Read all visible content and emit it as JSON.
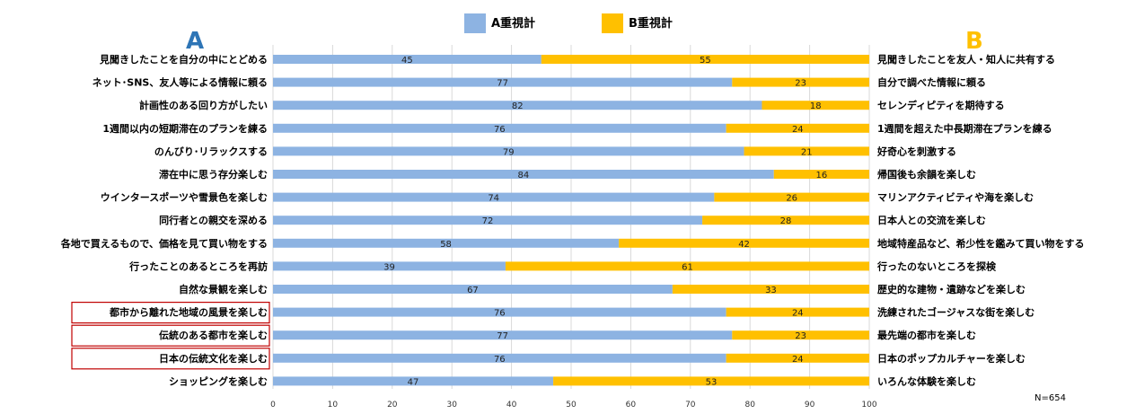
{
  "chart_data": {
    "type": "bar",
    "orientation": "horizontal",
    "stacked": true,
    "xlim": [
      0,
      100
    ],
    "xticks": [
      0,
      10,
      20,
      30,
      40,
      50,
      60,
      70,
      80,
      90,
      100
    ],
    "grid": true,
    "legend_position": "top",
    "left_heading": "A",
    "right_heading": "B",
    "note": "N=654",
    "series": [
      {
        "name": "A重視計",
        "color": "#8db3e2"
      },
      {
        "name": "B重視計",
        "color": "#ffc000"
      }
    ],
    "rows": [
      {
        "a_label": "見聞きしたことを自分の中にとどめる",
        "b_label": "見聞きしたことを友人・知人に共有する",
        "a": 45,
        "b": 55,
        "boxed": false
      },
      {
        "a_label": "ネット･SNS、友人等による情報に頼る",
        "b_label": "自分で調べた情報に頼る",
        "a": 77,
        "b": 23,
        "boxed": false
      },
      {
        "a_label": "計画性のある回り方がしたい",
        "b_label": "セレンディピティを期待する",
        "a": 82,
        "b": 18,
        "boxed": false
      },
      {
        "a_label": "1週間以内の短期滞在のプランを練る",
        "b_label": "1週間を超えた中長期滞在プランを練る",
        "a": 76,
        "b": 24,
        "boxed": false
      },
      {
        "a_label": "のんびり･リラックスする",
        "b_label": "好奇心を刺激する",
        "a": 79,
        "b": 21,
        "boxed": false
      },
      {
        "a_label": "滞在中に思う存分楽しむ",
        "b_label": "帰国後も余韻を楽しむ",
        "a": 84,
        "b": 16,
        "boxed": false
      },
      {
        "a_label": "ウインタースポーツや雪景色を楽しむ",
        "b_label": "マリンアクティビティや海を楽しむ",
        "a": 74,
        "b": 26,
        "boxed": false
      },
      {
        "a_label": "同行者との親交を深める",
        "b_label": "日本人との交流を楽しむ",
        "a": 72,
        "b": 28,
        "boxed": false
      },
      {
        "a_label": "各地で買えるもので、価格を見て買い物をする",
        "b_label": "地域特産品など、希少性を鑑みて買い物をする",
        "a": 58,
        "b": 42,
        "boxed": false
      },
      {
        "a_label": "行ったことのあるところを再訪",
        "b_label": "行ったのないところを探検",
        "a": 39,
        "b": 61,
        "boxed": false
      },
      {
        "a_label": "自然な景観を楽しむ",
        "b_label": "歴史的な建物・遺跡などを楽しむ",
        "a": 67,
        "b": 33,
        "boxed": false
      },
      {
        "a_label": "都市から離れた地域の風景を楽しむ",
        "b_label": "洗練されたゴージャスな街を楽しむ",
        "a": 76,
        "b": 24,
        "boxed": true
      },
      {
        "a_label": "伝統のある都市を楽しむ",
        "b_label": "最先端の都市を楽しむ",
        "a": 77,
        "b": 23,
        "boxed": true
      },
      {
        "a_label": "日本の伝統文化を楽しむ",
        "b_label": "日本のポップカルチャーを楽しむ",
        "a": 76,
        "b": 24,
        "boxed": true
      },
      {
        "a_label": "ショッピングを楽しむ",
        "b_label": "いろんな体験を楽しむ",
        "a": 47,
        "b": 53,
        "boxed": false
      }
    ],
    "heading_colors": {
      "a": "#2e75b6",
      "b": "#ffc000"
    },
    "box_color": "#c00000"
  }
}
